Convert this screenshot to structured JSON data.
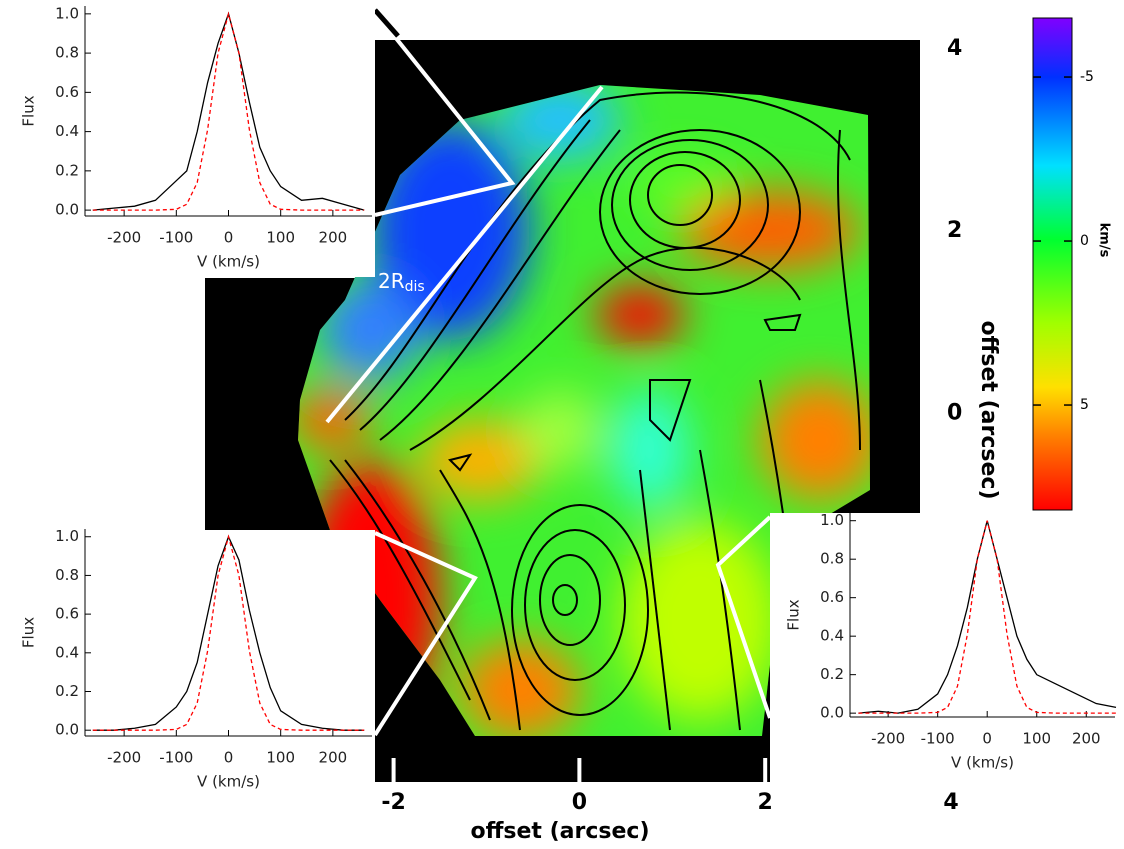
{
  "chart_data": [
    {
      "type": "map",
      "xlabel": "offset (arcsec)",
      "ylabel": "offset (arcsec)",
      "xlim": [
        -2.2,
        4
      ],
      "ylim": [
        -4.05,
        4.1
      ],
      "xticks": [
        -2,
        0,
        2,
        4
      ],
      "yticks": [
        0,
        2,
        4
      ],
      "annotation": "2R",
      "annotation_sub": "dis",
      "colorbar": {
        "label": "km/s",
        "lim": [
          -6.8,
          8.2
        ],
        "ticks": [
          -5,
          0,
          5
        ]
      }
    },
    {
      "type": "line",
      "xlabel": "V (km/s)",
      "ylabel": "Flux",
      "x": [
        -260,
        -220,
        -180,
        -140,
        -100,
        -80,
        -60,
        -40,
        -20,
        0,
        20,
        40,
        60,
        80,
        100,
        140,
        180,
        220,
        260
      ],
      "series": [
        {
          "color": "#000000",
          "values": [
            0.0,
            0.01,
            0.02,
            0.05,
            0.15,
            0.2,
            0.4,
            0.65,
            0.85,
            1.0,
            0.8,
            0.55,
            0.32,
            0.2,
            0.12,
            0.05,
            0.06,
            0.03,
            0.0
          ]
        },
        {
          "color": "#ff0000",
          "dash": true,
          "values": [
            0.0,
            0.0,
            0.0,
            0.0,
            0.004,
            0.03,
            0.14,
            0.41,
            0.8,
            1.0,
            0.8,
            0.41,
            0.14,
            0.03,
            0.004,
            0.0,
            0.0,
            0.0,
            0.0
          ]
        }
      ],
      "xlim": [
        -275,
        275
      ],
      "ylim": [
        -0.03,
        1.04
      ],
      "xticks": [
        -200,
        -100,
        0,
        100,
        200
      ],
      "yticks": [
        {
          "value": 0,
          "label": "0.0"
        },
        {
          "value": 0.2,
          "label": "0.2"
        },
        {
          "value": 0.4,
          "label": "0.4"
        },
        {
          "value": 0.6,
          "label": "0.6"
        },
        {
          "value": 0.8,
          "label": "0.8"
        },
        {
          "value": 1,
          "label": "1.0"
        }
      ]
    },
    {
      "type": "line",
      "xlabel": "V (km/s)",
      "ylabel": "Flux",
      "x": [
        -260,
        -220,
        -180,
        -140,
        -100,
        -80,
        -60,
        -40,
        -20,
        0,
        20,
        40,
        60,
        80,
        100,
        140,
        180,
        220,
        260
      ],
      "series": [
        {
          "color": "#000000",
          "values": [
            0.0,
            0.0,
            0.01,
            0.03,
            0.12,
            0.2,
            0.35,
            0.6,
            0.85,
            1.0,
            0.88,
            0.62,
            0.4,
            0.22,
            0.1,
            0.03,
            0.01,
            0.0,
            0.0
          ]
        },
        {
          "color": "#ff0000",
          "dash": true,
          "values": [
            0.0,
            0.0,
            0.0,
            0.0,
            0.004,
            0.03,
            0.14,
            0.41,
            0.8,
            1.0,
            0.8,
            0.41,
            0.14,
            0.03,
            0.004,
            0.0,
            0.0,
            0.0,
            0.0
          ]
        }
      ],
      "xlim": [
        -275,
        275
      ],
      "ylim": [
        -0.03,
        1.04
      ],
      "xticks": [
        -200,
        -100,
        0,
        100,
        200
      ],
      "yticks": [
        {
          "value": 0,
          "label": "0.0"
        },
        {
          "value": 0.2,
          "label": "0.2"
        },
        {
          "value": 0.4,
          "label": "0.4"
        },
        {
          "value": 0.6,
          "label": "0.6"
        },
        {
          "value": 0.8,
          "label": "0.8"
        },
        {
          "value": 1,
          "label": "1.0"
        }
      ]
    },
    {
      "type": "line",
      "xlabel": "V (km/s)",
      "ylabel": "Flux",
      "x": [
        -260,
        -220,
        -180,
        -140,
        -100,
        -80,
        -60,
        -40,
        -20,
        0,
        20,
        40,
        60,
        80,
        100,
        140,
        180,
        220,
        260
      ],
      "series": [
        {
          "color": "#000000",
          "values": [
            0.0,
            0.01,
            0.0,
            0.02,
            0.1,
            0.2,
            0.35,
            0.55,
            0.8,
            1.0,
            0.8,
            0.6,
            0.4,
            0.28,
            0.2,
            0.15,
            0.1,
            0.05,
            0.03
          ]
        },
        {
          "color": "#ff0000",
          "dash": true,
          "values": [
            0.0,
            0.0,
            0.0,
            0.0,
            0.004,
            0.03,
            0.14,
            0.41,
            0.8,
            1.0,
            0.8,
            0.41,
            0.14,
            0.03,
            0.004,
            0.0,
            0.0,
            0.0,
            0.0
          ]
        }
      ],
      "xlim": [
        -277,
        258
      ],
      "ylim": [
        -0.02,
        1.04
      ],
      "xticks": [
        -200,
        -100,
        0,
        100,
        200
      ],
      "yticks": [
        {
          "value": 0,
          "label": "0.0"
        },
        {
          "value": 0.2,
          "label": "0.2"
        },
        {
          "value": 0.4,
          "label": "0.4"
        },
        {
          "value": 0.6,
          "label": "0.6"
        },
        {
          "value": 0.8,
          "label": "0.8"
        },
        {
          "value": 1,
          "label": "1.0"
        }
      ]
    }
  ]
}
